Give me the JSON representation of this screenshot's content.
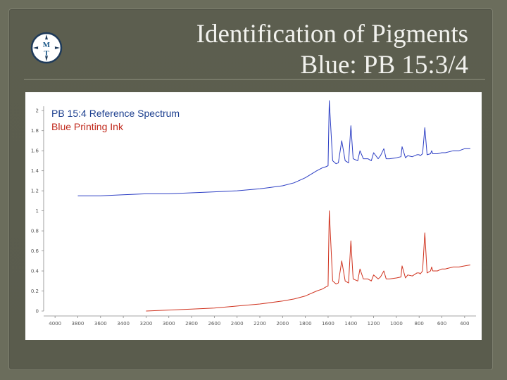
{
  "slide": {
    "title_line1": "Identification of Pigments",
    "title_line2": "Blue: PB 15:3/4",
    "logo_icon": "mt-compass-logo-icon"
  },
  "colors": {
    "background": "#5c5e4f",
    "series_blue": "#2c3ec4",
    "series_red": "#d0331f"
  },
  "chart_data": {
    "type": "line",
    "title": "",
    "xlabel": "",
    "ylabel": "",
    "xlim": [
      4100,
      300
    ],
    "ylim": [
      0,
      2.1
    ],
    "x_ticks": [
      "4000",
      "3800",
      "3600",
      "3400",
      "3200",
      "3000",
      "2800",
      "2600",
      "2400",
      "2200",
      "2000",
      "1800",
      "1600",
      "1400",
      "1200",
      "1000",
      "800",
      "600",
      "400"
    ],
    "y_ticks": [
      "0",
      "0.2",
      "0.4",
      "0.6",
      "0.8",
      "1",
      "1.2",
      "1.4",
      "1.6",
      "1.8",
      "2"
    ],
    "grid": false,
    "legend_position": "top-left",
    "series": [
      {
        "name": "PB 15:4 Reference Spectrum",
        "color": "#2c3ec4",
        "x": [
          3800,
          3600,
          3400,
          3200,
          3000,
          2800,
          2600,
          2400,
          2200,
          2000,
          1900,
          1800,
          1700,
          1650,
          1620,
          1600,
          1590,
          1560,
          1530,
          1510,
          1480,
          1450,
          1420,
          1400,
          1380,
          1340,
          1320,
          1290,
          1250,
          1220,
          1200,
          1160,
          1140,
          1110,
          1090,
          1060,
          1000,
          960,
          950,
          920,
          900,
          860,
          820,
          800,
          790,
          770,
          750,
          730,
          700,
          690,
          680,
          640,
          600,
          570,
          500,
          450,
          400,
          350
        ],
        "y": [
          1.15,
          1.15,
          1.16,
          1.17,
          1.17,
          1.18,
          1.19,
          1.2,
          1.22,
          1.25,
          1.28,
          1.33,
          1.4,
          1.43,
          1.44,
          1.45,
          2.1,
          1.5,
          1.47,
          1.48,
          1.7,
          1.5,
          1.48,
          1.85,
          1.52,
          1.5,
          1.6,
          1.52,
          1.52,
          1.5,
          1.58,
          1.52,
          1.55,
          1.62,
          1.52,
          1.52,
          1.53,
          1.54,
          1.64,
          1.53,
          1.55,
          1.54,
          1.56,
          1.56,
          1.55,
          1.57,
          1.83,
          1.56,
          1.57,
          1.6,
          1.57,
          1.57,
          1.58,
          1.58,
          1.6,
          1.6,
          1.62,
          1.62
        ]
      },
      {
        "name": "Blue Printing Ink",
        "color": "#d0331f",
        "x": [
          3200,
          3000,
          2800,
          2600,
          2400,
          2200,
          2000,
          1900,
          1800,
          1700,
          1650,
          1620,
          1600,
          1590,
          1560,
          1530,
          1510,
          1480,
          1450,
          1420,
          1400,
          1380,
          1340,
          1320,
          1290,
          1250,
          1220,
          1200,
          1160,
          1140,
          1110,
          1090,
          1060,
          1000,
          960,
          950,
          920,
          900,
          860,
          820,
          800,
          790,
          770,
          750,
          730,
          700,
          690,
          680,
          640,
          600,
          570,
          500,
          450,
          400,
          350
        ],
        "y": [
          0,
          0.01,
          0.02,
          0.03,
          0.05,
          0.07,
          0.1,
          0.12,
          0.15,
          0.2,
          0.22,
          0.24,
          0.25,
          1.0,
          0.3,
          0.27,
          0.28,
          0.5,
          0.3,
          0.28,
          0.7,
          0.32,
          0.3,
          0.42,
          0.32,
          0.32,
          0.3,
          0.36,
          0.32,
          0.34,
          0.4,
          0.32,
          0.32,
          0.33,
          0.34,
          0.45,
          0.33,
          0.36,
          0.35,
          0.38,
          0.38,
          0.37,
          0.4,
          0.78,
          0.38,
          0.4,
          0.44,
          0.4,
          0.4,
          0.42,
          0.42,
          0.44,
          0.44,
          0.45,
          0.46
        ]
      }
    ]
  }
}
